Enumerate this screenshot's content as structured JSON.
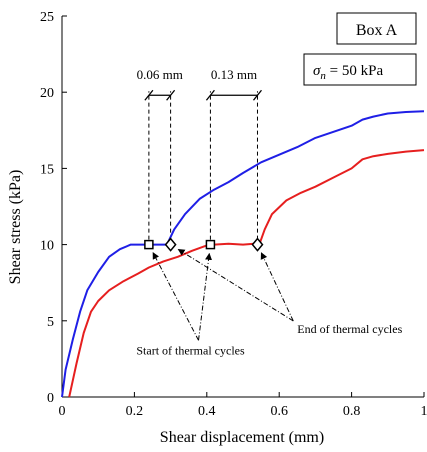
{
  "chart_data": {
    "type": "line",
    "xlabel": "Shear displacement (mm)",
    "ylabel": "Shear stress (kPa)",
    "xlim": [
      0,
      1
    ],
    "ylim": [
      0,
      25
    ],
    "x_ticks": [
      0,
      0.2,
      0.4,
      0.6,
      0.8,
      1
    ],
    "x_tick_labels": [
      "0",
      "0.2",
      "0.4",
      "0.6",
      "0.8",
      "1"
    ],
    "y_ticks": [
      0,
      5,
      10,
      15,
      20,
      25
    ],
    "y_tick_labels": [
      "0",
      "5",
      "10",
      "15",
      "20",
      "25"
    ],
    "grid": false,
    "series": [
      {
        "color": "#1f1fe6",
        "x": [
          0,
          0.01,
          0.03,
          0.05,
          0.07,
          0.1,
          0.13,
          0.16,
          0.19,
          0.22,
          0.24,
          0.27,
          0.29,
          0.31,
          0.34,
          0.38,
          0.42,
          0.46,
          0.5,
          0.55,
          0.6,
          0.65,
          0.7,
          0.75,
          0.8,
          0.83,
          0.86,
          0.9,
          0.95,
          1.0
        ],
        "values": [
          0,
          1.8,
          3.8,
          5.6,
          7.0,
          8.2,
          9.2,
          9.7,
          10.0,
          10.0,
          10.0,
          10.0,
          10.0,
          11.0,
          12.0,
          13.0,
          13.6,
          14.1,
          14.7,
          15.4,
          15.9,
          16.4,
          17.0,
          17.4,
          17.8,
          18.2,
          18.4,
          18.6,
          18.7,
          18.75
        ]
      },
      {
        "color": "#e61f1f",
        "x": [
          0.02,
          0.04,
          0.06,
          0.08,
          0.1,
          0.13,
          0.17,
          0.21,
          0.24,
          0.28,
          0.32,
          0.36,
          0.4,
          0.42,
          0.46,
          0.5,
          0.53,
          0.545,
          0.56,
          0.58,
          0.62,
          0.66,
          0.7,
          0.75,
          0.8,
          0.83,
          0.86,
          0.9,
          0.95,
          1.0
        ],
        "values": [
          0,
          2.2,
          4.2,
          5.6,
          6.3,
          7.0,
          7.6,
          8.1,
          8.5,
          8.9,
          9.2,
          9.6,
          9.95,
          10.0,
          10.05,
          10.0,
          10.05,
          10.0,
          11.0,
          12.0,
          12.9,
          13.4,
          13.8,
          14.4,
          15.0,
          15.6,
          15.8,
          15.95,
          16.1,
          16.2
        ]
      }
    ],
    "markers": [
      {
        "shape": "square",
        "x": 0.24,
        "y": 10.0
      },
      {
        "shape": "diamond",
        "x": 0.3,
        "y": 10.0
      },
      {
        "shape": "square",
        "x": 0.41,
        "y": 10.0
      },
      {
        "shape": "diamond",
        "x": 0.54,
        "y": 10.0
      }
    ],
    "dimensions": [
      {
        "label": "0.06 mm",
        "x_start": 0.24,
        "x_end": 0.3,
        "y": 19.8
      },
      {
        "label": "0.13 mm",
        "x_start": 0.41,
        "x_end": 0.54,
        "y": 19.8
      }
    ],
    "annotations": [
      {
        "text": "End of thermal cycles",
        "x": 0.65,
        "y": 4.2,
        "targets": [
          {
            "x": 0.3,
            "y": 10.0
          },
          {
            "x": 0.54,
            "y": 10.0
          }
        ]
      },
      {
        "text": "Start of thermal cycles",
        "x": 0.355,
        "y": 2.8,
        "targets": [
          {
            "x": 0.24,
            "y": 10.0
          },
          {
            "x": 0.41,
            "y": 10.0
          }
        ]
      }
    ],
    "legend_boxes": [
      {
        "text": "Box A"
      },
      {
        "symbol": "σ",
        "subscript": "n",
        "text": " = 50 kPa"
      }
    ]
  }
}
